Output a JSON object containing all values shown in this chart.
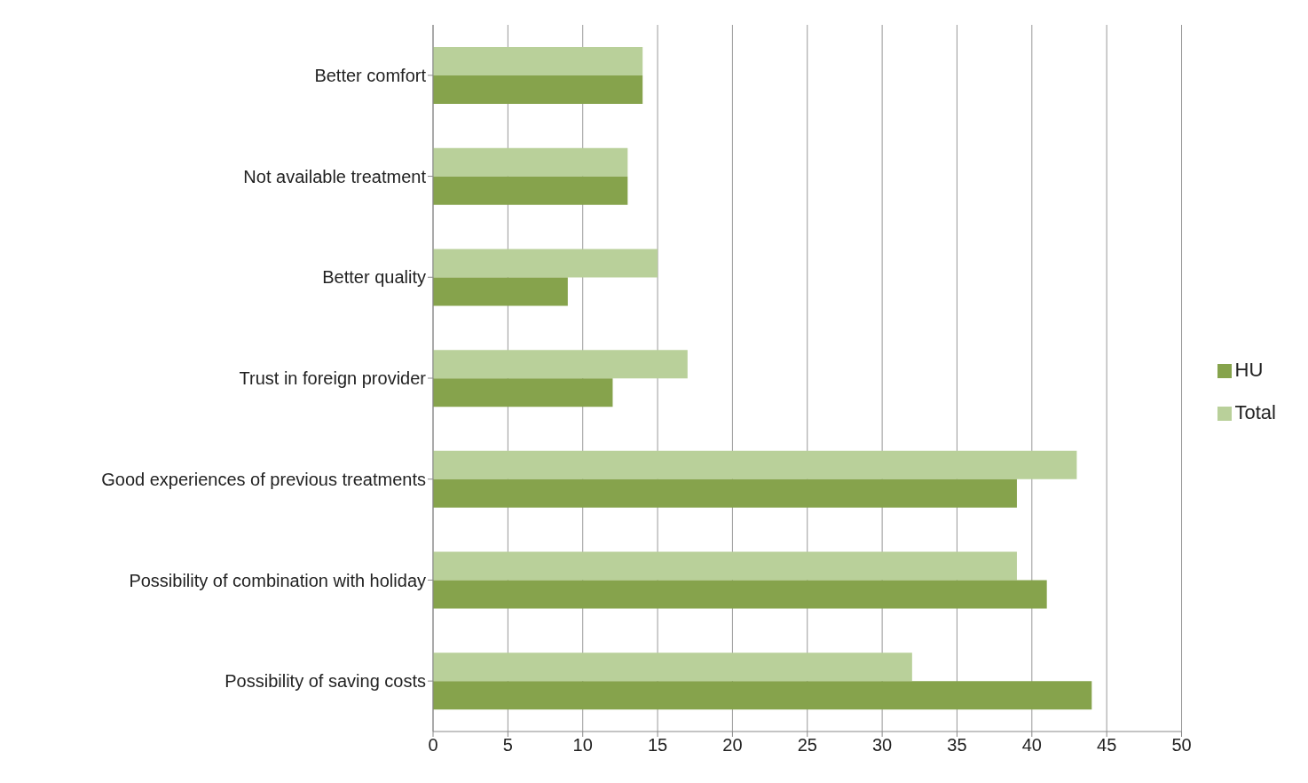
{
  "chart_data": {
    "type": "bar",
    "orientation": "horizontal",
    "categories": [
      "Better comfort",
      "Not available  treatment",
      "Better quality",
      "Trust in foreign provider",
      "Good experiences of previous treatments",
      "Possibility of combination  with holiday",
      "Possibility of saving costs"
    ],
    "series": [
      {
        "name": "Total",
        "color": "#b9d09a",
        "values": [
          14,
          13,
          15,
          17,
          43,
          39,
          32
        ]
      },
      {
        "name": "HU",
        "color": "#86a34c",
        "values": [
          14,
          13,
          9,
          12,
          39,
          41,
          44
        ]
      }
    ],
    "xlim": [
      0,
      50
    ],
    "xticks": [
      0,
      5,
      10,
      15,
      20,
      25,
      30,
      35,
      40,
      45,
      50
    ],
    "grid": "x",
    "legend": "right"
  }
}
